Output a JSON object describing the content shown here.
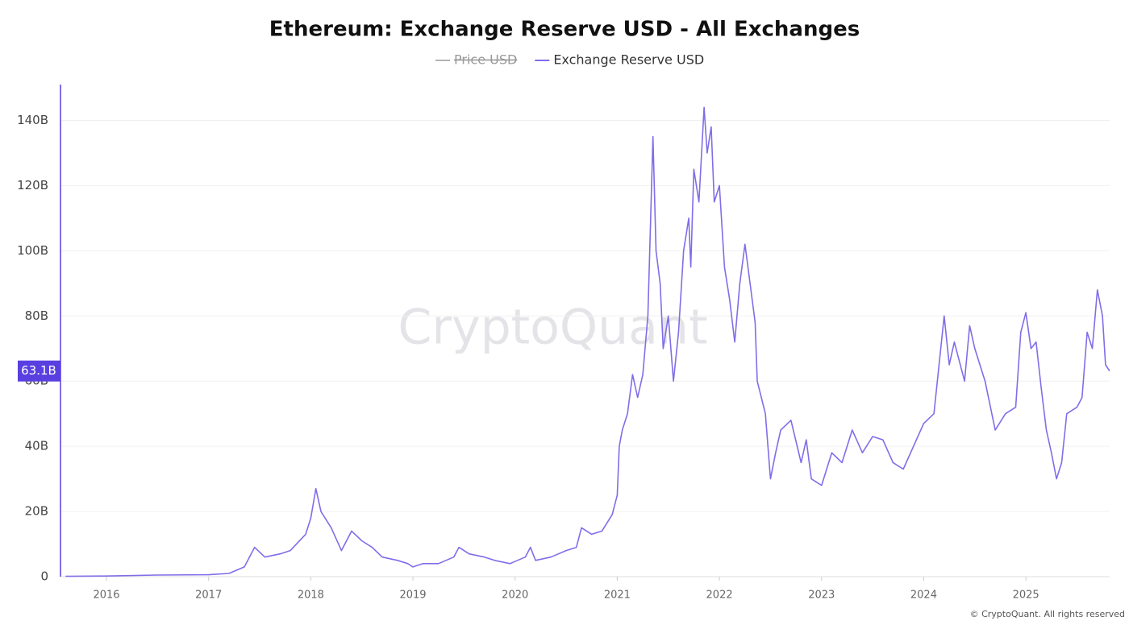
{
  "chart_data": {
    "type": "line",
    "title": "Ethereum: Exchange Reserve USD - All Exchanges",
    "hidden_legend_entries": [
      {
        "name": "Price USD",
        "color": "#9a9a9a"
      }
    ],
    "watermark": "CryptoQuant",
    "footer": "© CryptoQuant. All rights reserved",
    "current_value": {
      "value": 63.1,
      "label": "63.1B",
      "color": "#5a3fe0"
    },
    "xlim": [
      2015.55,
      2025.82
    ],
    "xticks": [
      2016,
      2017,
      2018,
      2019,
      2020,
      2021,
      2022,
      2023,
      2024,
      2025
    ],
    "ylim": [
      0,
      151
    ],
    "yticks": [
      0,
      {
        "value": 20,
        "label": "20B"
      },
      {
        "value": 40,
        "label": "40B"
      },
      {
        "value": 60,
        "label": "60B"
      },
      {
        "value": 80,
        "label": "80B"
      },
      {
        "value": 100,
        "label": "100B"
      },
      {
        "value": 120,
        "label": "120B"
      },
      {
        "value": 140,
        "label": "140B"
      }
    ],
    "grid": true,
    "x": [
      2015.6,
      2016.0,
      2016.5,
      2017.0,
      2017.2,
      2017.35,
      2017.45,
      2017.55,
      2017.7,
      2017.8,
      2017.95,
      2018.0,
      2018.05,
      2018.1,
      2018.2,
      2018.3,
      2018.4,
      2018.5,
      2018.6,
      2018.7,
      2018.85,
      2018.95,
      2019.0,
      2019.1,
      2019.25,
      2019.4,
      2019.45,
      2019.55,
      2019.7,
      2019.8,
      2019.95,
      2020.1,
      2020.15,
      2020.2,
      2020.35,
      2020.5,
      2020.6,
      2020.65,
      2020.75,
      2020.85,
      2020.95,
      2021.0,
      2021.02,
      2021.05,
      2021.1,
      2021.15,
      2021.2,
      2021.25,
      2021.3,
      2021.35,
      2021.38,
      2021.42,
      2021.45,
      2021.5,
      2021.55,
      2021.6,
      2021.65,
      2021.7,
      2021.72,
      2021.75,
      2021.8,
      2021.85,
      2021.88,
      2021.92,
      2021.95,
      2022.0,
      2022.05,
      2022.1,
      2022.15,
      2022.2,
      2022.25,
      2022.3,
      2022.35,
      2022.37,
      2022.45,
      2022.5,
      2022.55,
      2022.6,
      2022.7,
      2022.8,
      2022.85,
      2022.9,
      2023.0,
      2023.1,
      2023.2,
      2023.3,
      2023.4,
      2023.5,
      2023.6,
      2023.7,
      2023.8,
      2023.9,
      2024.0,
      2024.1,
      2024.2,
      2024.25,
      2024.3,
      2024.4,
      2024.45,
      2024.5,
      2024.6,
      2024.7,
      2024.8,
      2024.9,
      2024.95,
      2025.0,
      2025.05,
      2025.1,
      2025.15,
      2025.2,
      2025.25,
      2025.3,
      2025.35,
      2025.4,
      2025.5,
      2025.55,
      2025.6,
      2025.65,
      2025.7,
      2025.75,
      2025.78,
      2025.82
    ],
    "series": [
      {
        "name": "Exchange Reserve USD",
        "color": "#7f6ee8",
        "values": [
          0.1,
          0.2,
          0.5,
          0.6,
          1,
          3,
          9,
          6,
          7,
          8,
          13,
          18,
          27,
          20,
          15,
          8,
          14,
          11,
          9,
          6,
          5,
          4,
          3,
          4,
          4,
          6,
          9,
          7,
          6,
          5,
          4,
          6,
          9,
          5,
          6,
          8,
          9,
          15,
          13,
          14,
          19,
          25,
          40,
          45,
          50,
          62,
          55,
          62,
          80,
          135,
          100,
          90,
          70,
          80,
          60,
          75,
          100,
          110,
          95,
          125,
          115,
          144,
          130,
          138,
          115,
          120,
          95,
          85,
          72,
          90,
          102,
          90,
          78,
          60,
          50,
          30,
          38,
          45,
          48,
          35,
          42,
          30,
          28,
          38,
          35,
          45,
          38,
          43,
          42,
          35,
          33,
          40,
          47,
          50,
          80,
          65,
          72,
          60,
          77,
          70,
          60,
          45,
          50,
          52,
          75,
          81,
          70,
          72,
          58,
          45,
          38,
          30,
          35,
          50,
          52,
          55,
          75,
          70,
          88,
          80,
          65,
          63.1
        ]
      }
    ]
  }
}
